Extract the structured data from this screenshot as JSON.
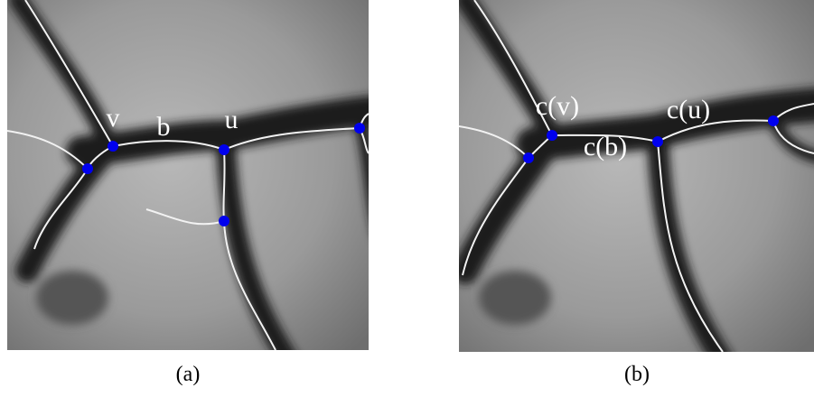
{
  "panels": [
    {
      "annotations": {
        "v": "v",
        "b": "b",
        "u": "u"
      },
      "caption": "(a)"
    },
    {
      "annotations": {
        "v": "c(v)",
        "b": "c(b)",
        "u": "c(u)"
      },
      "caption": "(b)"
    }
  ]
}
